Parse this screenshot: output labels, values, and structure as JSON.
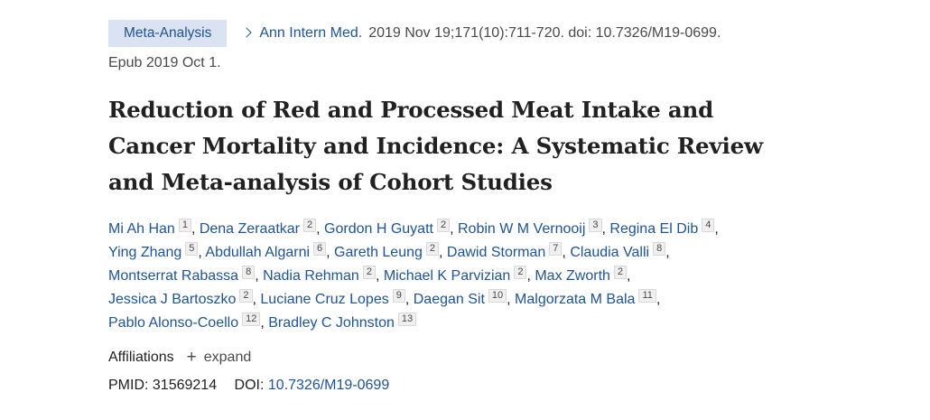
{
  "article_type": "Meta-Analysis",
  "journal": {
    "name": "Ann Intern Med.",
    "citation": "2019 Nov 19;171(10):711-720. doi: 10.7326/M19-0699.",
    "epub": "Epub 2019 Oct 1."
  },
  "title_line1": "Reduction of Red and Processed Meat Intake and",
  "title_line2": "Cancer Mortality and Incidence: A Systematic Review",
  "title_line3": "and Meta-analysis of Cohort Studies",
  "authors": [
    {
      "name": "Mi Ah Han",
      "aff": "1"
    },
    {
      "name": "Dena Zeraatkar",
      "aff": "2"
    },
    {
      "name": "Gordon H Guyatt",
      "aff": "2"
    },
    {
      "name": "Robin W M Vernooij",
      "aff": "3"
    },
    {
      "name": "Regina El Dib",
      "aff": "4"
    },
    {
      "name": "Ying Zhang",
      "aff": "5"
    },
    {
      "name": "Abdullah Algarni",
      "aff": "6"
    },
    {
      "name": "Gareth Leung",
      "aff": "2"
    },
    {
      "name": "Dawid Storman",
      "aff": "7"
    },
    {
      "name": "Claudia Valli",
      "aff": "8"
    },
    {
      "name": "Montserrat Rabassa",
      "aff": "8"
    },
    {
      "name": "Nadia Rehman",
      "aff": "2"
    },
    {
      "name": "Michael K Parvizian",
      "aff": "2"
    },
    {
      "name": "Max Zworth",
      "aff": "2"
    },
    {
      "name": "Jessica J Bartoszko",
      "aff": "2"
    },
    {
      "name": "Luciane Cruz Lopes",
      "aff": "9"
    },
    {
      "name": "Daegan Sit",
      "aff": "10"
    },
    {
      "name": "Malgorzata M Bala",
      "aff": "11"
    },
    {
      "name": "Pablo Alonso-Coello",
      "aff": "12"
    },
    {
      "name": "Bradley C Johnston",
      "aff": "13"
    }
  ],
  "affiliations": {
    "label": "Affiliations",
    "expand_label": "expand",
    "expand_symbol": "+"
  },
  "ids": {
    "pmid_label": "PMID:",
    "pmid_value": "31569214",
    "doi_label": "DOI:",
    "doi_value": "10.7326/M19-0699"
  },
  "colors": {
    "link": "#205493",
    "badge_bg": "#dbe3f3"
  }
}
